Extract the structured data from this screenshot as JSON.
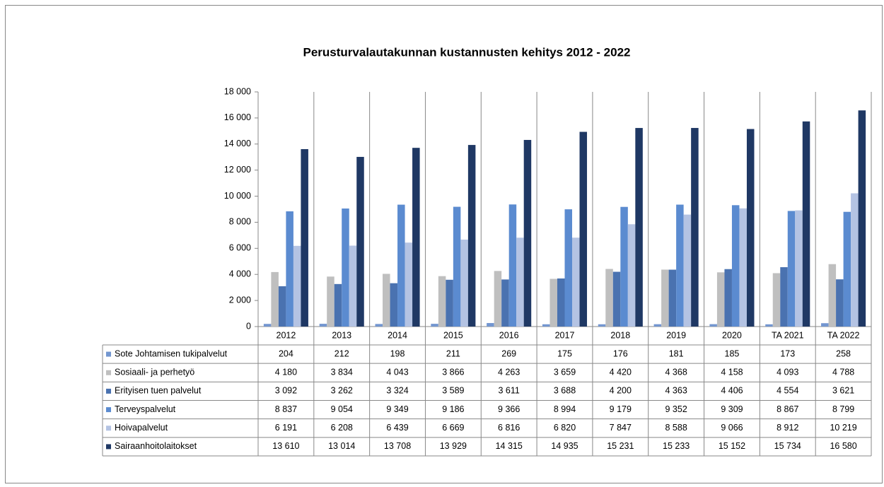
{
  "chart_data": {
    "type": "bar",
    "title": "Perusturvalautakunnan kustannusten kehitys 2012 - 2022",
    "categories": [
      "2012",
      "2013",
      "2014",
      "2015",
      "2016",
      "2017",
      "2018",
      "2019",
      "2020",
      "TA 2021",
      "TA 2022"
    ],
    "ylim": [
      0,
      18000
    ],
    "yticks": [
      {
        "value": 0,
        "label": "0"
      },
      {
        "value": 2000,
        "label": "2 000"
      },
      {
        "value": 4000,
        "label": "4 000"
      },
      {
        "value": 6000,
        "label": "6 000"
      },
      {
        "value": 8000,
        "label": "8 000"
      },
      {
        "value": 10000,
        "label": "10 000"
      },
      {
        "value": 12000,
        "label": "12 000"
      },
      {
        "value": 14000,
        "label": "14 000"
      },
      {
        "value": 16000,
        "label": "16 000"
      },
      {
        "value": 18000,
        "label": "18 000"
      }
    ],
    "series": [
      {
        "name": "Sote Johtamisen tukipalvelut",
        "color": "#7396d0",
        "values": [
          204,
          212,
          198,
          211,
          269,
          175,
          176,
          181,
          185,
          173,
          258
        ],
        "value_labels": [
          "204",
          "212",
          "198",
          "211",
          "269",
          "175",
          "176",
          "181",
          "185",
          "173",
          "258"
        ]
      },
      {
        "name": "Sosiaali- ja perhetyö",
        "color": "#bfbfbf",
        "values": [
          4180,
          3834,
          4043,
          3866,
          4263,
          3659,
          4420,
          4368,
          4158,
          4093,
          4788
        ],
        "value_labels": [
          "4 180",
          "3 834",
          "4 043",
          "3 866",
          "4 263",
          "3 659",
          "4 420",
          "4 368",
          "4 158",
          "4 093",
          "4 788"
        ]
      },
      {
        "name": "Erityisen tuen palvelut",
        "color": "#4a72b0",
        "values": [
          3092,
          3262,
          3324,
          3589,
          3611,
          3688,
          4200,
          4363,
          4406,
          4554,
          3621
        ],
        "value_labels": [
          "3 092",
          "3 262",
          "3 324",
          "3 589",
          "3 611",
          "3 688",
          "4 200",
          "4 363",
          "4 406",
          "4 554",
          "3 621"
        ]
      },
      {
        "name": "Terveyspalvelut",
        "color": "#5b8bd0",
        "values": [
          8837,
          9054,
          9349,
          9186,
          9366,
          8994,
          9179,
          9352,
          9309,
          8867,
          8799
        ],
        "value_labels": [
          "8 837",
          "9 054",
          "9 349",
          "9 186",
          "9 366",
          "8 994",
          "9 179",
          "9 352",
          "9 309",
          "8 867",
          "8 799"
        ]
      },
      {
        "name": "Hoivapalvelut",
        "color": "#b4c3e3",
        "values": [
          6191,
          6208,
          6439,
          6669,
          6816,
          6820,
          7847,
          8588,
          9066,
          8912,
          10219
        ],
        "value_labels": [
          "6 191",
          "6 208",
          "6 439",
          "6 669",
          "6 816",
          "6 820",
          "7 847",
          "8 588",
          "9 066",
          "8 912",
          "10 219"
        ]
      },
      {
        "name": "Sairaanhoitolaitokset",
        "color": "#1f3864",
        "values": [
          13610,
          13014,
          13708,
          13929,
          14315,
          14935,
          15231,
          15233,
          15152,
          15734,
          16580
        ],
        "value_labels": [
          "13 610",
          "13 014",
          "13 708",
          "13 929",
          "14 315",
          "14 935",
          "15 231",
          "15 233",
          "15 152",
          "15 734",
          "16 580"
        ]
      }
    ]
  }
}
